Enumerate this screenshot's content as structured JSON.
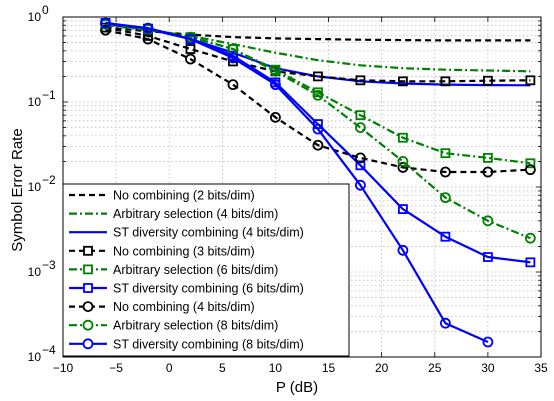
{
  "chart_data": {
    "type": "line",
    "xlabel": "P (dB)",
    "ylabel": "Symbol Error Rate",
    "xlim": [
      -10,
      35
    ],
    "ylim": [
      0.0001,
      1
    ],
    "yscale": "log",
    "grid": true,
    "legend_position": "bottom-left",
    "x_ticks": [
      "−10",
      "−5",
      "0",
      "5",
      "10",
      "15",
      "20",
      "25",
      "30",
      "35"
    ],
    "y_ticks": [
      {
        "base": "10",
        "exp": "0"
      },
      {
        "base": "10",
        "exp": "−1"
      },
      {
        "base": "10",
        "exp": "−2"
      },
      {
        "base": "10",
        "exp": "−3"
      },
      {
        "base": "10",
        "exp": "−4"
      }
    ],
    "series": [
      {
        "name": "No combining (2 bits/dim)",
        "color": "#000000",
        "dash": "dash",
        "marker": "none",
        "x": [
          -6,
          -2,
          2,
          6,
          10,
          14,
          18,
          22,
          26,
          30,
          34
        ],
        "y": [
          0.75,
          0.68,
          0.62,
          0.58,
          0.56,
          0.55,
          0.54,
          0.535,
          0.53,
          0.53,
          0.53
        ]
      },
      {
        "name": "Arbitrary selection (4 bits/dim)",
        "color": "#008000",
        "dash": "dashdot",
        "marker": "none",
        "x": [
          -6,
          -2,
          2,
          6,
          10,
          14,
          18,
          22,
          26,
          30,
          34
        ],
        "y": [
          0.8,
          0.7,
          0.6,
          0.48,
          0.38,
          0.31,
          0.27,
          0.25,
          0.24,
          0.235,
          0.23
        ]
      },
      {
        "name": "ST diversity combining (4 bits/dim)",
        "color": "#0000ff",
        "dash": "solid",
        "marker": "none",
        "x": [
          -6,
          -2,
          2,
          6,
          10,
          14,
          18,
          22,
          26,
          30,
          34
        ],
        "y": [
          0.82,
          0.72,
          0.55,
          0.38,
          0.25,
          0.2,
          0.175,
          0.165,
          0.16,
          0.158,
          0.157
        ]
      },
      {
        "name": "No combining (3 bits/dim)",
        "color": "#000000",
        "dash": "dash",
        "marker": "square",
        "x": [
          -6,
          -2,
          2,
          6,
          10,
          14,
          18,
          22,
          26,
          30,
          34
        ],
        "y": [
          0.75,
          0.6,
          0.42,
          0.3,
          0.23,
          0.2,
          0.18,
          0.175,
          0.175,
          0.178,
          0.18
        ]
      },
      {
        "name": "Arbitrary selection (6 bits/dim)",
        "color": "#008000",
        "dash": "dashdot",
        "marker": "square",
        "x": [
          -6,
          -2,
          2,
          6,
          10,
          14,
          18,
          22,
          26,
          30,
          34
        ],
        "y": [
          0.82,
          0.72,
          0.58,
          0.42,
          0.24,
          0.13,
          0.07,
          0.038,
          0.025,
          0.022,
          0.019
        ]
      },
      {
        "name": "ST diversity combining (6 bits/dim)",
        "color": "#0000ff",
        "dash": "solid",
        "marker": "square",
        "x": [
          -6,
          -2,
          2,
          6,
          10,
          14,
          18,
          22,
          26,
          30,
          34
        ],
        "y": [
          0.85,
          0.73,
          0.55,
          0.35,
          0.17,
          0.055,
          0.018,
          0.0055,
          0.0026,
          0.0015,
          0.0013
        ]
      },
      {
        "name": "No combining (4 bits/dim)",
        "color": "#000000",
        "dash": "dash",
        "marker": "circle",
        "x": [
          -6,
          -2,
          2,
          6,
          10,
          14,
          18,
          22,
          26,
          30,
          34
        ],
        "y": [
          0.7,
          0.55,
          0.32,
          0.16,
          0.066,
          0.031,
          0.022,
          0.017,
          0.015,
          0.015,
          0.016
        ]
      },
      {
        "name": "Arbitrary selection (8 bits/dim)",
        "color": "#008000",
        "dash": "dashdot",
        "marker": "circle",
        "x": [
          -6,
          -2,
          2,
          6,
          10,
          14,
          18,
          22,
          26,
          30,
          34
        ],
        "y": [
          0.83,
          0.72,
          0.58,
          0.42,
          0.23,
          0.12,
          0.05,
          0.02,
          0.0075,
          0.004,
          0.0025
        ]
      },
      {
        "name": "ST diversity combining (8 bits/dim)",
        "color": "#0000ff",
        "dash": "solid",
        "marker": "circle",
        "x": [
          -6,
          -2,
          2,
          6,
          10,
          14,
          18,
          22,
          26,
          30
        ],
        "y": [
          0.85,
          0.74,
          0.55,
          0.33,
          0.16,
          0.048,
          0.0105,
          0.0018,
          0.00025,
          0.00015
        ]
      }
    ]
  }
}
